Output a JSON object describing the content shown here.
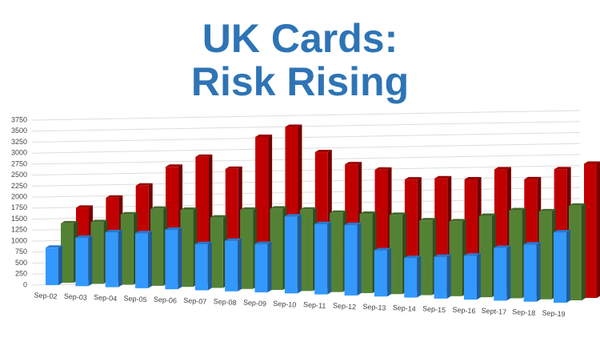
{
  "chart_data": {
    "type": "bar3d",
    "title": [
      "UK Cards:",
      "Risk Rising"
    ],
    "categories": [
      "Sep-02",
      "Sep-03",
      "Sep-04",
      "Sep-05",
      "Sep-06",
      "Sep-07",
      "Sep-08",
      "Sep-09",
      "Sep-10",
      "Sep-11",
      "Sep-12",
      "Sep-13",
      "Sep-14",
      "Sep-15",
      "Sep-16",
      "Sept-17",
      "Sep-18",
      "Sep-19"
    ],
    "series": [
      {
        "color": "#c00000",
        "values": [
          1650,
          1900,
          2200,
          2650,
          2900,
          2650,
          3400,
          3650,
          3100,
          2850,
          2750,
          2550,
          2600,
          2600,
          2850,
          2650,
          2900,
          3050
        ]
      },
      {
        "color": "#548235",
        "values": [
          1350,
          1400,
          1600,
          1750,
          1750,
          1600,
          1800,
          1850,
          1850,
          1800,
          1800,
          1800,
          1700,
          1700,
          1850,
          2000,
          2000,
          2150
        ]
      },
      {
        "color": "#3399ff",
        "values": [
          850,
          1100,
          1250,
          1250,
          1350,
          1050,
          1150,
          1100,
          1750,
          1600,
          1600,
          1050,
          900,
          950,
          1000,
          1200,
          1300,
          1600
        ]
      }
    ],
    "ylim": [
      0,
      3750
    ],
    "yticks": [
      0,
      250,
      500,
      750,
      1000,
      1250,
      1500,
      1750,
      2000,
      2250,
      2500,
      2750,
      3000,
      3250,
      3500,
      3750
    ],
    "grid": true
  }
}
